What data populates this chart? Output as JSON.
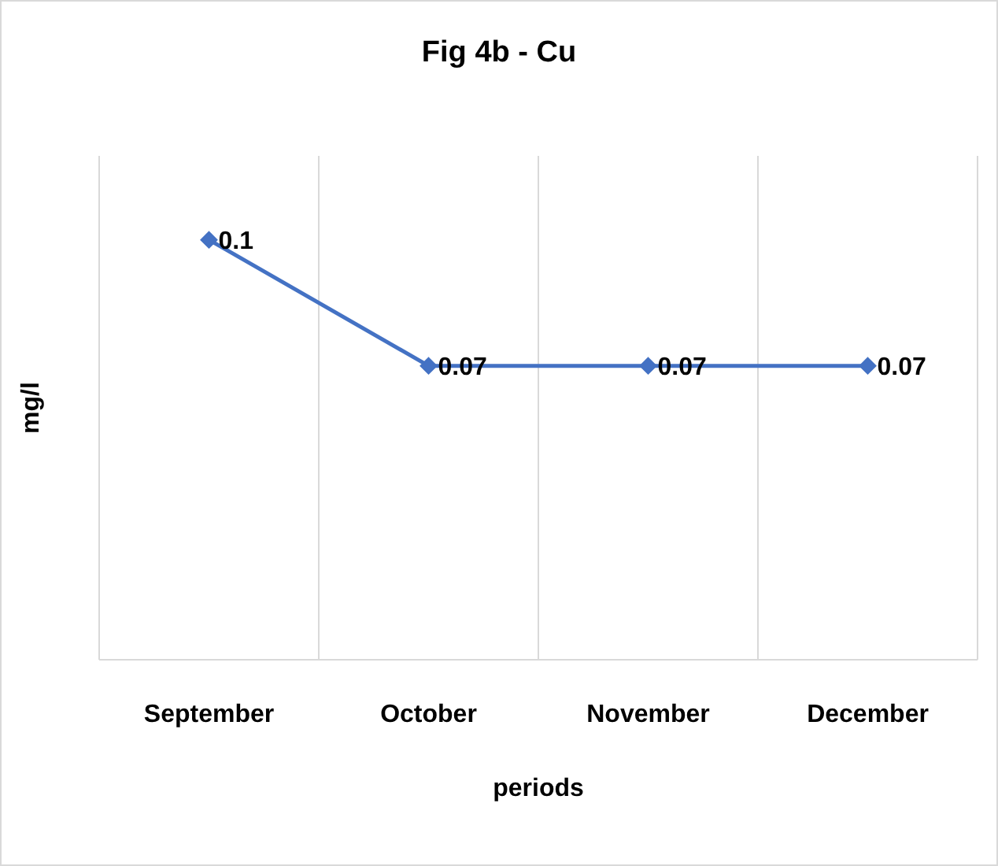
{
  "chart_data": {
    "type": "line",
    "title": "Fig 4b - Cu",
    "xlabel": "periods",
    "ylabel": "mg/l",
    "categories": [
      "September",
      "October",
      "November",
      "December"
    ],
    "series": [
      {
        "color": "#4472c4",
        "values": [
          0.1,
          0.07,
          0.07,
          0.07
        ]
      }
    ],
    "ylim": [
      0,
      0.12
    ],
    "tick_labels": "x",
    "grid": "x",
    "marker": "diamond",
    "line_style": "solid",
    "data_labels": true
  }
}
